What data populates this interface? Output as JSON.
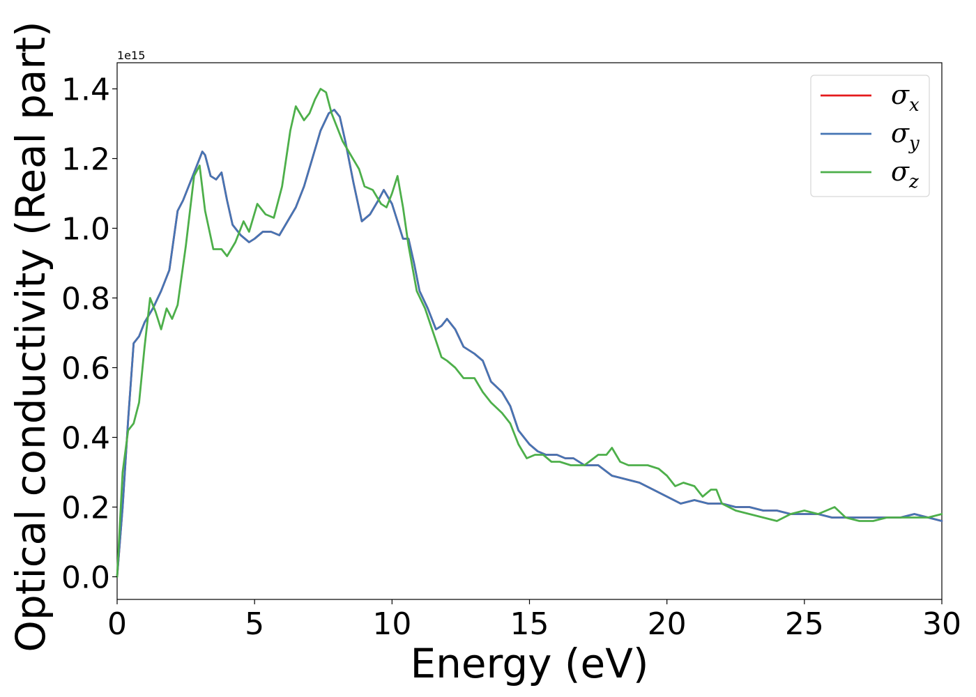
{
  "chart_data": {
    "type": "line",
    "title": "",
    "xlabel": "Energy (eV)",
    "ylabel": "Optical conductivity (Real part)",
    "y_offset_text": "1e15",
    "xlim": [
      0,
      30
    ],
    "ylim": [
      -0.065,
      1.475
    ],
    "x_ticks": [
      0,
      5,
      10,
      15,
      20,
      25,
      30
    ],
    "y_ticks": [
      0.0,
      0.2,
      0.4,
      0.6,
      0.8,
      1.0,
      1.2,
      1.4
    ],
    "x_tick_labels": [
      "0",
      "5",
      "10",
      "15",
      "20",
      "25",
      "30"
    ],
    "y_tick_labels": [
      "0.0",
      "0.2",
      "0.4",
      "0.6",
      "0.8",
      "1.0",
      "1.2",
      "1.4"
    ],
    "grid": false,
    "legend_position": "top-right",
    "series": [
      {
        "name": "σx",
        "symbol": "σ",
        "subscript": "x",
        "color": "#e41a1c",
        "x": [
          0,
          0.2,
          0.4,
          0.6,
          0.8,
          1.0,
          1.3,
          1.6,
          1.9,
          2.2,
          2.4,
          2.7,
          3.0,
          3.1,
          3.2,
          3.4,
          3.6,
          3.8,
          4.0,
          4.2,
          4.5,
          4.8,
          5.0,
          5.3,
          5.6,
          5.9,
          6.2,
          6.5,
          6.8,
          7.1,
          7.4,
          7.7,
          7.9,
          8.1,
          8.3,
          8.6,
          8.9,
          9.2,
          9.5,
          9.7,
          10.0,
          10.2,
          10.4,
          10.6,
          10.8,
          11.0,
          11.3,
          11.6,
          11.8,
          12.0,
          12.3,
          12.6,
          13.0,
          13.3,
          13.6,
          14.0,
          14.3,
          14.6,
          15.0,
          15.3,
          15.6,
          16.0,
          16.3,
          16.6,
          17.0,
          17.5,
          18.0,
          18.5,
          19.0,
          19.5,
          20.0,
          20.5,
          21.0,
          21.5,
          22.0,
          22.5,
          23.0,
          23.5,
          24.0,
          24.5,
          25.0,
          25.5,
          26.0,
          26.5,
          27.0,
          27.5,
          28.0,
          28.5,
          29.0,
          29.5,
          30.0
        ],
        "values": [
          0.0,
          0.2,
          0.45,
          0.67,
          0.69,
          0.73,
          0.77,
          0.82,
          0.88,
          1.05,
          1.08,
          1.14,
          1.2,
          1.22,
          1.21,
          1.15,
          1.14,
          1.16,
          1.08,
          1.01,
          0.98,
          0.96,
          0.97,
          0.99,
          0.99,
          0.98,
          1.02,
          1.06,
          1.12,
          1.2,
          1.28,
          1.33,
          1.34,
          1.32,
          1.25,
          1.13,
          1.02,
          1.04,
          1.08,
          1.11,
          1.07,
          1.02,
          0.97,
          0.97,
          0.9,
          0.82,
          0.77,
          0.71,
          0.72,
          0.74,
          0.71,
          0.66,
          0.64,
          0.62,
          0.56,
          0.53,
          0.49,
          0.42,
          0.38,
          0.36,
          0.35,
          0.35,
          0.34,
          0.34,
          0.32,
          0.32,
          0.29,
          0.28,
          0.27,
          0.25,
          0.23,
          0.21,
          0.22,
          0.21,
          0.21,
          0.2,
          0.2,
          0.19,
          0.19,
          0.18,
          0.18,
          0.18,
          0.17,
          0.17,
          0.17,
          0.17,
          0.17,
          0.17,
          0.18,
          0.17,
          0.16
        ]
      },
      {
        "name": "σy",
        "symbol": "σ",
        "subscript": "y",
        "color": "#4575b4",
        "x": [
          0,
          0.2,
          0.4,
          0.6,
          0.8,
          1.0,
          1.3,
          1.6,
          1.9,
          2.2,
          2.4,
          2.7,
          3.0,
          3.1,
          3.2,
          3.4,
          3.6,
          3.8,
          4.0,
          4.2,
          4.5,
          4.8,
          5.0,
          5.3,
          5.6,
          5.9,
          6.2,
          6.5,
          6.8,
          7.1,
          7.4,
          7.7,
          7.9,
          8.1,
          8.3,
          8.6,
          8.9,
          9.2,
          9.5,
          9.7,
          10.0,
          10.2,
          10.4,
          10.6,
          10.8,
          11.0,
          11.3,
          11.6,
          11.8,
          12.0,
          12.3,
          12.6,
          13.0,
          13.3,
          13.6,
          14.0,
          14.3,
          14.6,
          15.0,
          15.3,
          15.6,
          16.0,
          16.3,
          16.6,
          17.0,
          17.5,
          18.0,
          18.5,
          19.0,
          19.5,
          20.0,
          20.5,
          21.0,
          21.5,
          22.0,
          22.5,
          23.0,
          23.5,
          24.0,
          24.5,
          25.0,
          25.5,
          26.0,
          26.5,
          27.0,
          27.5,
          28.0,
          28.5,
          29.0,
          29.5,
          30.0
        ],
        "values": [
          0.0,
          0.2,
          0.45,
          0.67,
          0.69,
          0.73,
          0.77,
          0.82,
          0.88,
          1.05,
          1.08,
          1.14,
          1.2,
          1.22,
          1.21,
          1.15,
          1.14,
          1.16,
          1.08,
          1.01,
          0.98,
          0.96,
          0.97,
          0.99,
          0.99,
          0.98,
          1.02,
          1.06,
          1.12,
          1.2,
          1.28,
          1.33,
          1.34,
          1.32,
          1.25,
          1.13,
          1.02,
          1.04,
          1.08,
          1.11,
          1.07,
          1.02,
          0.97,
          0.97,
          0.9,
          0.82,
          0.77,
          0.71,
          0.72,
          0.74,
          0.71,
          0.66,
          0.64,
          0.62,
          0.56,
          0.53,
          0.49,
          0.42,
          0.38,
          0.36,
          0.35,
          0.35,
          0.34,
          0.34,
          0.32,
          0.32,
          0.29,
          0.28,
          0.27,
          0.25,
          0.23,
          0.21,
          0.22,
          0.21,
          0.21,
          0.2,
          0.2,
          0.19,
          0.19,
          0.18,
          0.18,
          0.18,
          0.17,
          0.17,
          0.17,
          0.17,
          0.17,
          0.17,
          0.18,
          0.17,
          0.16
        ]
      },
      {
        "name": "σz",
        "symbol": "σ",
        "subscript": "z",
        "color": "#4daf4a",
        "x": [
          0,
          0.2,
          0.4,
          0.6,
          0.8,
          1.0,
          1.2,
          1.4,
          1.6,
          1.8,
          2.0,
          2.2,
          2.5,
          2.8,
          3.0,
          3.2,
          3.5,
          3.8,
          4.0,
          4.3,
          4.6,
          4.8,
          5.1,
          5.4,
          5.7,
          6.0,
          6.3,
          6.5,
          6.8,
          7.0,
          7.2,
          7.4,
          7.6,
          7.8,
          8.0,
          8.2,
          8.5,
          8.8,
          9.0,
          9.3,
          9.6,
          9.8,
          10.0,
          10.2,
          10.4,
          10.6,
          10.9,
          11.2,
          11.5,
          11.8,
          12.0,
          12.3,
          12.6,
          13.0,
          13.3,
          13.6,
          14.0,
          14.3,
          14.6,
          14.9,
          15.2,
          15.5,
          15.8,
          16.1,
          16.5,
          17.0,
          17.5,
          17.8,
          18.0,
          18.3,
          18.6,
          19.0,
          19.3,
          19.7,
          20.0,
          20.3,
          20.6,
          21.0,
          21.3,
          21.6,
          21.8,
          22.0,
          22.5,
          23.0,
          23.5,
          24.0,
          24.5,
          25.0,
          25.5,
          25.8,
          26.1,
          26.5,
          27.0,
          27.5,
          28.0,
          28.5,
          29.0,
          29.5,
          30.0
        ],
        "values": [
          0.0,
          0.3,
          0.42,
          0.44,
          0.5,
          0.66,
          0.8,
          0.76,
          0.71,
          0.77,
          0.74,
          0.78,
          0.95,
          1.15,
          1.18,
          1.05,
          0.94,
          0.94,
          0.92,
          0.96,
          1.02,
          0.99,
          1.07,
          1.04,
          1.03,
          1.12,
          1.28,
          1.35,
          1.31,
          1.33,
          1.37,
          1.4,
          1.39,
          1.33,
          1.29,
          1.25,
          1.21,
          1.17,
          1.12,
          1.11,
          1.07,
          1.06,
          1.1,
          1.15,
          1.06,
          0.95,
          0.82,
          0.77,
          0.7,
          0.63,
          0.62,
          0.6,
          0.57,
          0.57,
          0.53,
          0.5,
          0.47,
          0.44,
          0.38,
          0.34,
          0.35,
          0.35,
          0.33,
          0.33,
          0.32,
          0.32,
          0.35,
          0.35,
          0.37,
          0.33,
          0.32,
          0.32,
          0.32,
          0.31,
          0.29,
          0.26,
          0.27,
          0.26,
          0.23,
          0.25,
          0.25,
          0.21,
          0.19,
          0.18,
          0.17,
          0.16,
          0.18,
          0.19,
          0.18,
          0.19,
          0.2,
          0.17,
          0.16,
          0.16,
          0.17,
          0.17,
          0.17,
          0.17,
          0.18
        ]
      }
    ]
  }
}
